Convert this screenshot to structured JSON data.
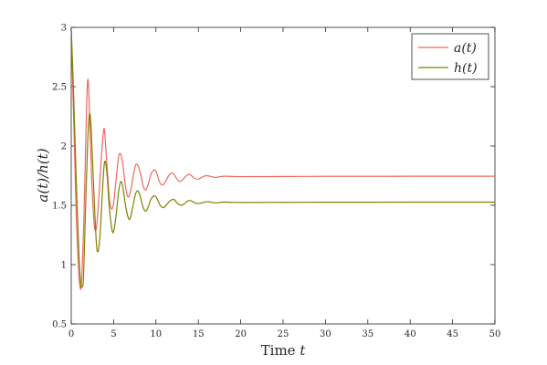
{
  "chart_data": {
    "type": "line",
    "title": "",
    "xlabel": "Time t",
    "ylabel": "a(t)/h(t)",
    "xlim": [
      0,
      50
    ],
    "ylim": [
      0.5,
      3
    ],
    "xticks": [
      0,
      5,
      10,
      15,
      20,
      25,
      30,
      35,
      40,
      45,
      50
    ],
    "yticks": [
      0.5,
      1,
      1.5,
      2,
      2.5,
      3
    ],
    "xtick_labels": [
      "0",
      "5",
      "10",
      "15",
      "20",
      "25",
      "30",
      "35",
      "40",
      "45",
      "50"
    ],
    "ytick_labels": [
      "0.5",
      "1",
      "1.5",
      "2",
      "2.5",
      "3"
    ],
    "grid": false,
    "legend_position": "top-right",
    "series": [
      {
        "name": "a(t)",
        "color": "#f0675f",
        "points": [
          [
            0,
            3.0
          ],
          [
            0.3,
            2.2
          ],
          [
            0.6,
            1.4
          ],
          [
            0.9,
            0.92
          ],
          [
            1.0,
            0.83
          ],
          [
            1.2,
            0.84
          ],
          [
            1.5,
            1.4
          ],
          [
            1.8,
            2.3
          ],
          [
            1.95,
            2.56
          ],
          [
            2.1,
            2.4
          ],
          [
            2.4,
            1.75
          ],
          [
            2.7,
            1.35
          ],
          [
            2.95,
            1.3
          ],
          [
            3.2,
            1.5
          ],
          [
            3.5,
            1.85
          ],
          [
            3.8,
            2.12
          ],
          [
            3.95,
            2.11
          ],
          [
            4.2,
            1.85
          ],
          [
            4.5,
            1.56
          ],
          [
            4.75,
            1.47
          ],
          [
            5.0,
            1.52
          ],
          [
            5.3,
            1.72
          ],
          [
            5.6,
            1.91
          ],
          [
            5.85,
            1.93
          ],
          [
            6.1,
            1.84
          ],
          [
            6.4,
            1.66
          ],
          [
            6.7,
            1.57
          ],
          [
            7.0,
            1.62
          ],
          [
            7.3,
            1.74
          ],
          [
            7.6,
            1.84
          ],
          [
            7.9,
            1.83
          ],
          [
            8.2,
            1.76
          ],
          [
            8.5,
            1.66
          ],
          [
            8.8,
            1.63
          ],
          [
            9.1,
            1.68
          ],
          [
            9.4,
            1.76
          ],
          [
            9.8,
            1.8
          ],
          [
            10.1,
            1.77
          ],
          [
            10.4,
            1.7
          ],
          [
            10.8,
            1.67
          ],
          [
            11.2,
            1.71
          ],
          [
            11.6,
            1.76
          ],
          [
            12.0,
            1.77
          ],
          [
            12.4,
            1.73
          ],
          [
            12.8,
            1.7
          ],
          [
            13.2,
            1.72
          ],
          [
            13.6,
            1.75
          ],
          [
            14.0,
            1.76
          ],
          [
            14.5,
            1.73
          ],
          [
            15.0,
            1.72
          ],
          [
            15.5,
            1.74
          ],
          [
            16.0,
            1.75
          ],
          [
            17.0,
            1.735
          ],
          [
            18.0,
            1.745
          ],
          [
            20.0,
            1.742
          ],
          [
            25.0,
            1.743
          ],
          [
            30.0,
            1.744
          ],
          [
            35.0,
            1.744
          ],
          [
            40.0,
            1.745
          ],
          [
            45.0,
            1.745
          ],
          [
            50.0,
            1.745
          ]
        ]
      },
      {
        "name": "h(t)",
        "color": "#808000",
        "points": [
          [
            0,
            3.0
          ],
          [
            0.3,
            2.4
          ],
          [
            0.6,
            1.7
          ],
          [
            0.9,
            1.1
          ],
          [
            1.1,
            0.86
          ],
          [
            1.25,
            0.81
          ],
          [
            1.45,
            0.9
          ],
          [
            1.7,
            1.5
          ],
          [
            1.95,
            2.05
          ],
          [
            2.15,
            2.27
          ],
          [
            2.35,
            2.15
          ],
          [
            2.65,
            1.65
          ],
          [
            2.95,
            1.2
          ],
          [
            3.15,
            1.11
          ],
          [
            3.4,
            1.25
          ],
          [
            3.75,
            1.7
          ],
          [
            3.95,
            1.87
          ],
          [
            4.2,
            1.78
          ],
          [
            4.5,
            1.48
          ],
          [
            4.8,
            1.3
          ],
          [
            5.0,
            1.28
          ],
          [
            5.3,
            1.42
          ],
          [
            5.6,
            1.62
          ],
          [
            5.85,
            1.7
          ],
          [
            6.1,
            1.65
          ],
          [
            6.4,
            1.5
          ],
          [
            6.75,
            1.39
          ],
          [
            7.0,
            1.4
          ],
          [
            7.3,
            1.5
          ],
          [
            7.6,
            1.6
          ],
          [
            7.9,
            1.62
          ],
          [
            8.2,
            1.56
          ],
          [
            8.5,
            1.48
          ],
          [
            8.8,
            1.45
          ],
          [
            9.1,
            1.49
          ],
          [
            9.4,
            1.55
          ],
          [
            9.8,
            1.58
          ],
          [
            10.1,
            1.56
          ],
          [
            10.5,
            1.5
          ],
          [
            10.9,
            1.48
          ],
          [
            11.3,
            1.51
          ],
          [
            11.7,
            1.54
          ],
          [
            12.1,
            1.55
          ],
          [
            12.5,
            1.52
          ],
          [
            12.9,
            1.5
          ],
          [
            13.3,
            1.51
          ],
          [
            13.7,
            1.535
          ],
          [
            14.1,
            1.54
          ],
          [
            14.6,
            1.52
          ],
          [
            15.1,
            1.515
          ],
          [
            15.6,
            1.525
          ],
          [
            16.2,
            1.53
          ],
          [
            17.0,
            1.52
          ],
          [
            18.0,
            1.527
          ],
          [
            20.0,
            1.524
          ],
          [
            25.0,
            1.525
          ],
          [
            30.0,
            1.526
          ],
          [
            35.0,
            1.526
          ],
          [
            40.0,
            1.527
          ],
          [
            45.0,
            1.527
          ],
          [
            50.0,
            1.527
          ]
        ]
      }
    ]
  },
  "legend": {
    "items": [
      {
        "label": "a(t)",
        "color": "#f0675f"
      },
      {
        "label": "h(t)",
        "color": "#808000"
      }
    ]
  },
  "labels": {
    "xlabel_prefix": "Time ",
    "xlabel_var": "t",
    "ylabel": "a(t)/h(t)"
  }
}
